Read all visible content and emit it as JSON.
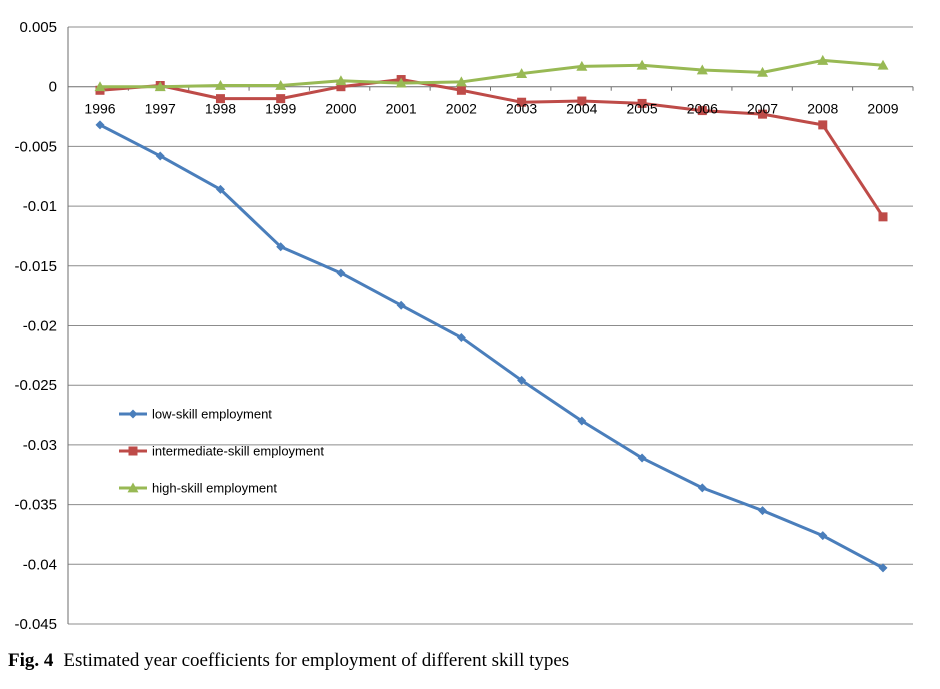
{
  "chart_data": {
    "type": "line",
    "x": [
      "1996",
      "1997",
      "1998",
      "1999",
      "2000",
      "2001",
      "2002",
      "2003",
      "2004",
      "2005",
      "2006",
      "2007",
      "2008",
      "2009"
    ],
    "ylim": [
      -0.045,
      0.005
    ],
    "yticks": [
      "0.005",
      "0",
      "-0.005",
      "-0.01",
      "-0.015",
      "-0.02",
      "-0.025",
      "-0.03",
      "-0.035",
      "-0.04",
      "-0.045"
    ],
    "grid": true,
    "legend_position": "lower-left inside plot",
    "series": [
      {
        "name": "low-skill employment",
        "color": "#4a7ebb",
        "marker": "diamond",
        "values": [
          -0.0032,
          -0.0058,
          -0.0086,
          -0.0134,
          -0.0156,
          -0.0183,
          -0.021,
          -0.0246,
          -0.028,
          -0.0311,
          -0.0336,
          -0.0355,
          -0.0376,
          -0.0403
        ]
      },
      {
        "name": "intermediate-skill employment",
        "color": "#be4b48",
        "marker": "square",
        "values": [
          -0.0003,
          0.0001,
          -0.001,
          -0.001,
          0.0,
          0.0006,
          -0.0003,
          -0.0013,
          -0.0012,
          -0.0014,
          -0.002,
          -0.0023,
          -0.0032,
          -0.0109
        ]
      },
      {
        "name": "high-skill employment",
        "color": "#98b954",
        "marker": "triangle",
        "values": [
          0.0,
          0.0,
          0.0001,
          0.0001,
          0.0005,
          0.0003,
          0.0004,
          0.0011,
          0.0017,
          0.0018,
          0.0014,
          0.0012,
          0.0022,
          0.0018
        ]
      }
    ]
  },
  "caption": {
    "label": "Fig. 4",
    "text": "Estimated year coefficients for employment of different skill types"
  }
}
